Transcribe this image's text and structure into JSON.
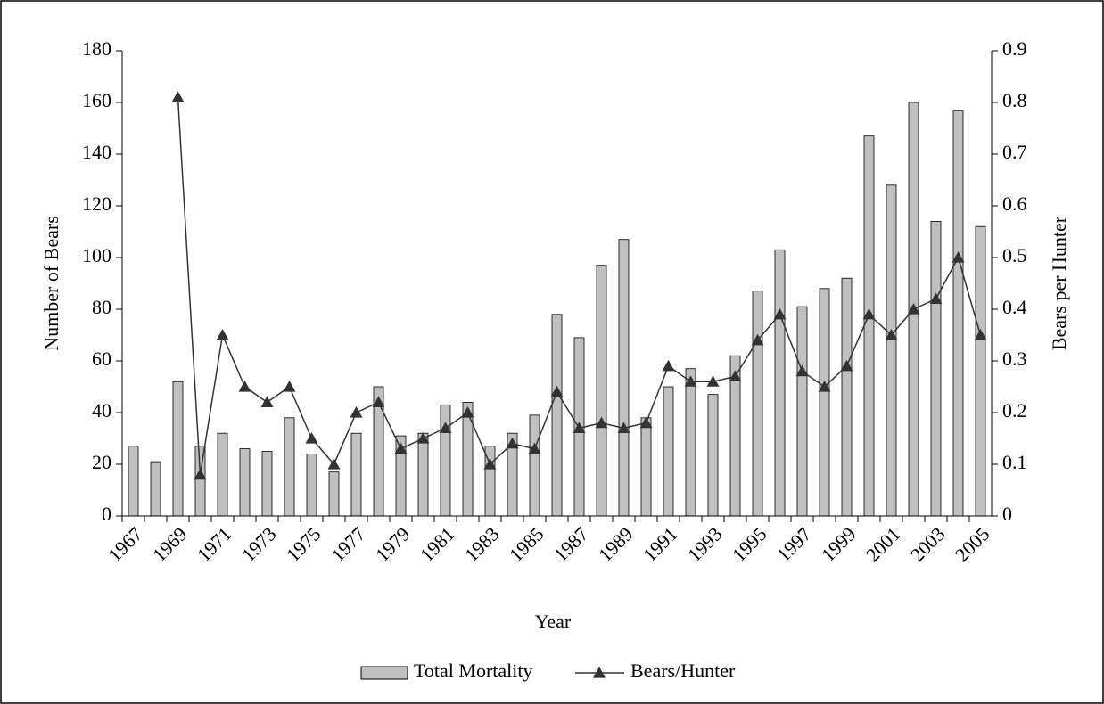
{
  "chart_data": {
    "type": "bar",
    "xlabel": "Year",
    "ylabel": "Number of Bears",
    "y2label": "Bears per Hunter",
    "categories": [
      "1967",
      null,
      "1969",
      null,
      "1971",
      null,
      "1973",
      null,
      "1975",
      null,
      "1977",
      null,
      "1979",
      null,
      "1981",
      null,
      "1983",
      null,
      "1985",
      null,
      "1987",
      null,
      "1989",
      null,
      "1991",
      null,
      "1993",
      null,
      "1995",
      null,
      "1997",
      null,
      "1999",
      null,
      "2001",
      null,
      "2003",
      null,
      "2005"
    ],
    "series": [
      {
        "name": "Total Mortality",
        "type": "bar",
        "color": "#c0c0c0",
        "values": [
          27,
          21,
          52,
          27,
          32,
          26,
          25,
          38,
          24,
          17,
          32,
          50,
          31,
          32,
          43,
          44,
          27,
          32,
          39,
          78,
          69,
          97,
          107,
          38,
          50,
          57,
          47,
          62,
          87,
          103,
          81,
          88,
          92,
          147,
          128,
          160,
          114,
          157,
          112
        ]
      },
      {
        "name": "Bears/Hunter",
        "type": "line",
        "axis": "y2",
        "color": "#333333",
        "values": [
          null,
          null,
          0.81,
          0.08,
          0.35,
          0.25,
          0.22,
          0.25,
          0.15,
          0.1,
          0.2,
          0.22,
          0.13,
          0.15,
          0.17,
          0.2,
          0.1,
          0.14,
          0.13,
          0.24,
          0.17,
          0.18,
          0.17,
          0.18,
          0.29,
          0.26,
          0.26,
          0.27,
          0.34,
          0.39,
          0.28,
          0.25,
          0.29,
          0.39,
          0.35,
          0.4,
          0.42,
          0.5,
          0.35
        ]
      }
    ],
    "ylim": [
      0,
      180
    ],
    "yticks": [
      0,
      20,
      40,
      60,
      80,
      100,
      120,
      140,
      160,
      180
    ],
    "y2lim": [
      0,
      0.9
    ],
    "y2ticks": [
      0,
      0.1,
      0.2,
      0.3,
      0.4,
      0.5,
      0.6,
      0.7,
      0.8,
      0.9
    ],
    "legend": "bottom"
  }
}
